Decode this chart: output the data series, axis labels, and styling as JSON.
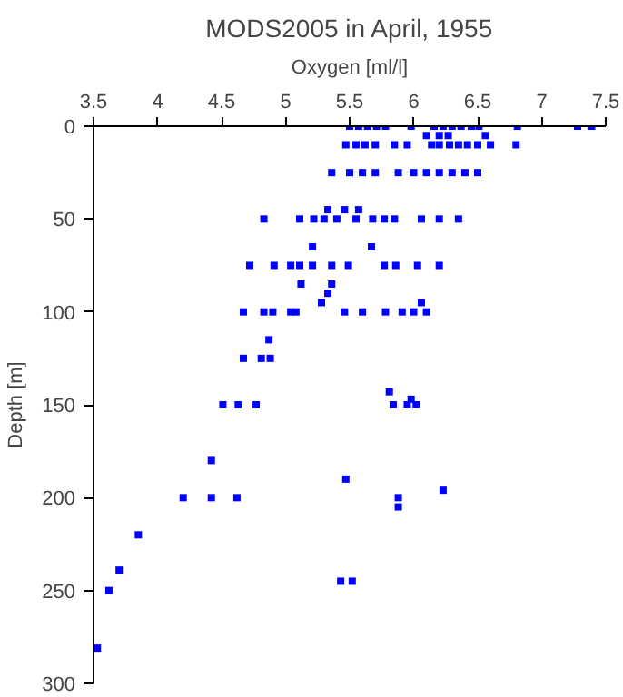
{
  "chart_data": {
    "type": "scatter",
    "title": "MODS2005 in April, 1955",
    "xlabel": "Oxygen [ml/l]",
    "ylabel": "Depth [m]",
    "xlim": [
      3.5,
      7.5
    ],
    "ylim": [
      300,
      0
    ],
    "xticks": [
      3.5,
      4,
      4.5,
      5,
      5.5,
      6,
      6.5,
      7,
      7.5
    ],
    "yticks": [
      0,
      50,
      100,
      150,
      200,
      250,
      300
    ],
    "grid": false,
    "marker": "square",
    "series": [
      {
        "color": "#0000ff",
        "x": [
          5.5,
          5.57,
          5.64,
          5.71,
          5.78,
          5.98,
          6.16,
          6.23,
          6.3,
          6.37,
          6.45,
          6.51,
          6.81,
          7.28,
          7.39,
          6.1,
          6.2,
          6.27,
          6.56,
          5.47,
          5.55,
          5.62,
          5.7,
          5.85,
          5.95,
          6.14,
          6.2,
          6.28,
          6.35,
          6.42,
          6.5,
          6.6,
          6.8,
          5.36,
          5.5,
          5.6,
          5.7,
          5.88,
          6.0,
          6.1,
          6.2,
          6.3,
          6.4,
          6.5,
          5.33,
          5.46,
          5.57,
          4.83,
          5.11,
          5.22,
          5.3,
          5.4,
          5.55,
          5.68,
          5.77,
          5.85,
          6.06,
          6.2,
          6.35,
          5.21,
          5.67,
          4.72,
          4.91,
          5.04,
          5.11,
          5.21,
          5.36,
          5.49,
          5.77,
          5.86,
          6.03,
          6.2,
          5.12,
          5.36,
          5.33,
          5.28,
          6.06,
          4.67,
          4.83,
          4.9,
          5.04,
          5.08,
          5.46,
          5.6,
          5.78,
          5.91,
          6.0,
          6.1,
          4.87,
          4.67,
          4.81,
          4.88,
          5.81,
          5.98,
          4.51,
          4.63,
          4.77,
          5.84,
          5.95,
          6.02,
          4.42,
          5.47,
          6.23,
          4.2,
          4.42,
          4.62,
          5.88,
          5.88,
          3.85,
          3.7,
          3.62,
          3.53,
          5.43,
          5.52
        ],
        "values": [
          0,
          0,
          0,
          0,
          0,
          0,
          0,
          0,
          0,
          0,
          0,
          0,
          0,
          0,
          0,
          5,
          5,
          5,
          5,
          10,
          10,
          10,
          10,
          10,
          10,
          10,
          10,
          10,
          10,
          10,
          10,
          10,
          10,
          25,
          25,
          25,
          25,
          25,
          25,
          25,
          25,
          25,
          25,
          25,
          45,
          45,
          45,
          50,
          50,
          50,
          50,
          50,
          50,
          50,
          50,
          50,
          50,
          50,
          50,
          65,
          65,
          75,
          75,
          75,
          75,
          75,
          75,
          75,
          75,
          75,
          75,
          75,
          85,
          85,
          90,
          95,
          95,
          100,
          100,
          100,
          100,
          100,
          100,
          100,
          100,
          100,
          100,
          100,
          115,
          125,
          125,
          125,
          143,
          147,
          150,
          150,
          150,
          150,
          150,
          150,
          180,
          190,
          196,
          200,
          200,
          200,
          200,
          205,
          220,
          239,
          250,
          281,
          245,
          245
        ]
      }
    ]
  }
}
